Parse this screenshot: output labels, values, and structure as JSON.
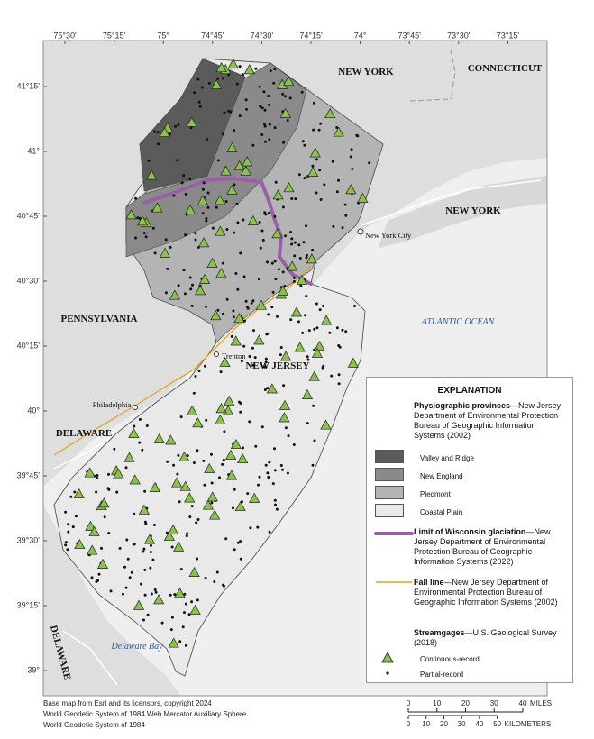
{
  "longitude_labels": [
    "75°30'",
    "75°15'",
    "75°",
    "74°45'",
    "74°30'",
    "74°15'",
    "74°",
    "73°45'",
    "73°30'",
    "73°15'"
  ],
  "latitude_labels": [
    "41°15'",
    "41°",
    "40°45'",
    "40°30'",
    "40°15'",
    "40°",
    "39°45'",
    "39°30'",
    "39°15'",
    "39°"
  ],
  "places": {
    "new_york_north": "NEW YORK",
    "connecticut": "CONNECTICUT",
    "new_york_east": "NEW YORK",
    "new_york_city": "New York City",
    "pennsylvania": "PENNSYLVANIA",
    "atlantic_ocean": "ATLANTIC OCEAN",
    "trenton": "Trenton",
    "new_jersey": "NEW JERSEY",
    "philadelphia": "Philadelphia",
    "delaware_upper": "DELAWARE",
    "delaware_lower": "DELAWARE",
    "delaware_bay": "Delaware Bay"
  },
  "explanation": {
    "title": "EXPLANATION",
    "provinces_heading": "Physiographic provinces",
    "provinces_source": "—New Jersey Department of Environmental Protection Bureau of Geographic Information Systems (2002)",
    "provinces": [
      "Valley and Ridge",
      "New England",
      "Piedmont",
      "Coastal Plain"
    ],
    "glaciation_heading": "Limit of Wisconsin glaciation",
    "glaciation_source": "—New Jersey Department of Environmental Protection Bureau of Geographic Information Systems (2022)",
    "fall_line_heading": "Fall line",
    "fall_line_source": "—New Jersey Department of Environmental Protection Bureau of Geographic Information Systems (2002)",
    "streamgages_heading": "Streamgages",
    "streamgages_source": "—U.S. Geological Survey (2018)",
    "streamgage_types": [
      "Continuous-record",
      "Partial-record"
    ]
  },
  "scale_bar": {
    "miles": [
      "0",
      "10",
      "20",
      "30",
      "40"
    ],
    "miles_unit": "MILES",
    "kilometers": [
      "0",
      "10",
      "20",
      "30",
      "40",
      "50"
    ],
    "kilometers_unit": "KILOMETERS"
  },
  "credits": [
    "Base map from Esri and its licensors, copyright 2024",
    "World Geodetic System of 1984 Web Mercator Auxiliary Sphere",
    "World Geodetic System of 1984"
  ]
}
